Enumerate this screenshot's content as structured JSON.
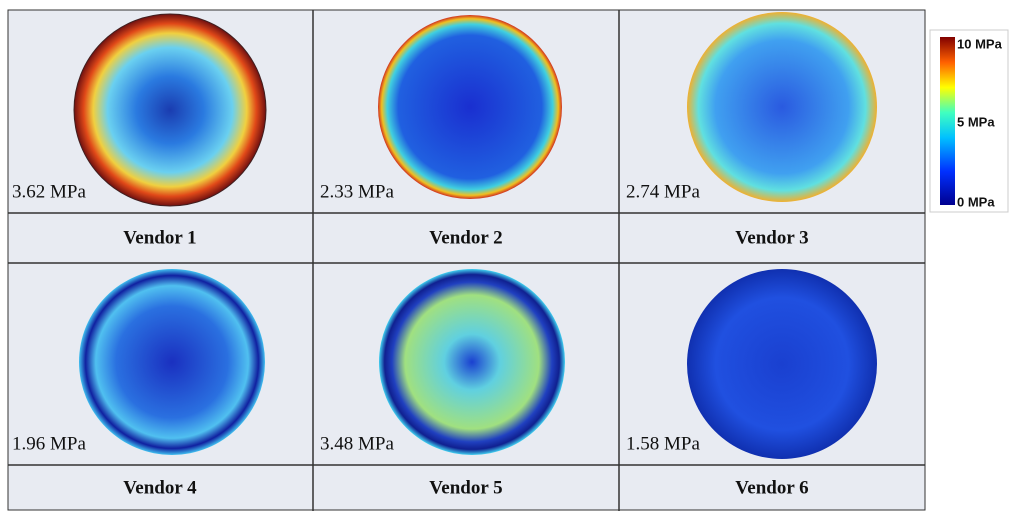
{
  "panels": [
    {
      "stress": "3.62 MPa",
      "vendor": "Vendor 1"
    },
    {
      "stress": "2.33 MPa",
      "vendor": "Vendor 2"
    },
    {
      "stress": "2.74 MPa",
      "vendor": "Vendor 3"
    },
    {
      "stress": "1.96 MPa",
      "vendor": "Vendor 4"
    },
    {
      "stress": "3.48 MPa",
      "vendor": "Vendor 5"
    },
    {
      "stress": "1.58 MPa",
      "vendor": "Vendor 6"
    }
  ],
  "colorbar": {
    "labels": [
      "10 MPa",
      "5 MPa",
      "0 MPa"
    ]
  }
}
